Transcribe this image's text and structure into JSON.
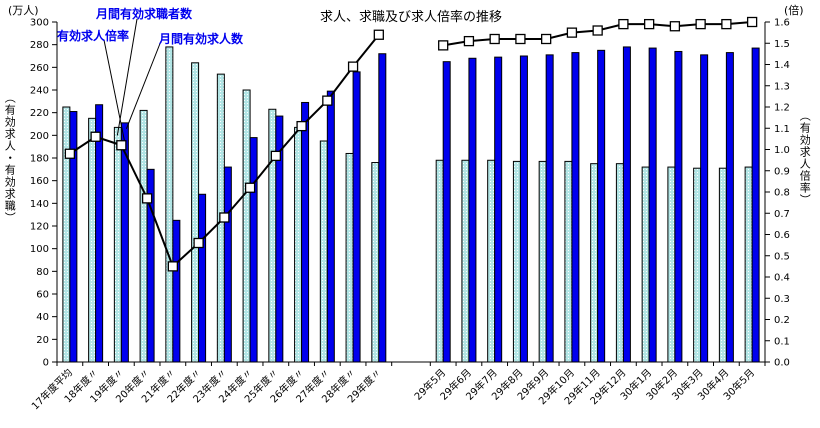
{
  "title": "求人、求職及び求人倍率の推移",
  "units": {
    "left": "(万人)",
    "right": "(倍)"
  },
  "axis_titles": {
    "left": "（有効求人・有効求職）",
    "right": "（有効求人倍率）"
  },
  "legend": {
    "seekers_label": "月間有効求職者数",
    "ratio_label": "有効求人倍率",
    "openings_label": "月間有効求人数"
  },
  "colors": {
    "openings_fill": "#0000EE",
    "seekers_fill": "#B2E5E5",
    "line": "#000000",
    "marker_fill": "#FFFFFF",
    "legend_text": "#0000EE",
    "axis": "#000000"
  },
  "chart_data": {
    "type": "bar",
    "title": "求人、求職及び求人倍率の推移",
    "left_axis": {
      "min": 0,
      "max": 300,
      "step": 20,
      "unit": "(万人)",
      "label": "（有効求人・有効求職）"
    },
    "right_axis": {
      "min": 0.0,
      "max": 1.6,
      "step": 0.1,
      "unit": "(倍)",
      "label": "（有効求人倍率）"
    },
    "grid": false,
    "series_names": {
      "seekers": "月間有効求職者数",
      "openings": "月間有効求人数",
      "ratio": "有効求人倍率"
    },
    "groups": [
      {
        "name": "yearly",
        "categories": [
          "17年度平均",
          "18年度〃",
          "19年度〃",
          "20年度〃",
          "21年度〃",
          "22年度〃",
          "23年度〃",
          "24年度〃",
          "25年度〃",
          "26年度〃",
          "27年度〃",
          "28年度〃",
          "29年度〃"
        ],
        "seekers": [
          225,
          215,
          207,
          222,
          278,
          264,
          254,
          240,
          223,
          207,
          195,
          184,
          176
        ],
        "openings": [
          221,
          227,
          211,
          170,
          125,
          148,
          172,
          198,
          217,
          229,
          239,
          256,
          272
        ],
        "ratio": [
          0.98,
          1.06,
          1.02,
          0.77,
          0.45,
          0.56,
          0.68,
          0.82,
          0.97,
          1.11,
          1.23,
          1.39,
          1.54
        ]
      },
      {
        "name": "monthly",
        "categories": [
          "29年5月",
          "29年6月",
          "29年7月",
          "29年8月",
          "29年9月",
          "29年10月",
          "29年11月",
          "29年12月",
          "30年1月",
          "30年2月",
          "30年3月",
          "30年4月",
          "30年5月"
        ],
        "seekers": [
          178,
          178,
          178,
          177,
          177,
          177,
          175,
          175,
          172,
          172,
          171,
          171,
          172
        ],
        "openings": [
          265,
          268,
          269,
          270,
          271,
          273,
          275,
          278,
          277,
          274,
          271,
          273,
          277
        ],
        "ratio": [
          1.49,
          1.51,
          1.52,
          1.52,
          1.52,
          1.55,
          1.56,
          1.59,
          1.59,
          1.58,
          1.59,
          1.59,
          1.6
        ]
      }
    ]
  }
}
